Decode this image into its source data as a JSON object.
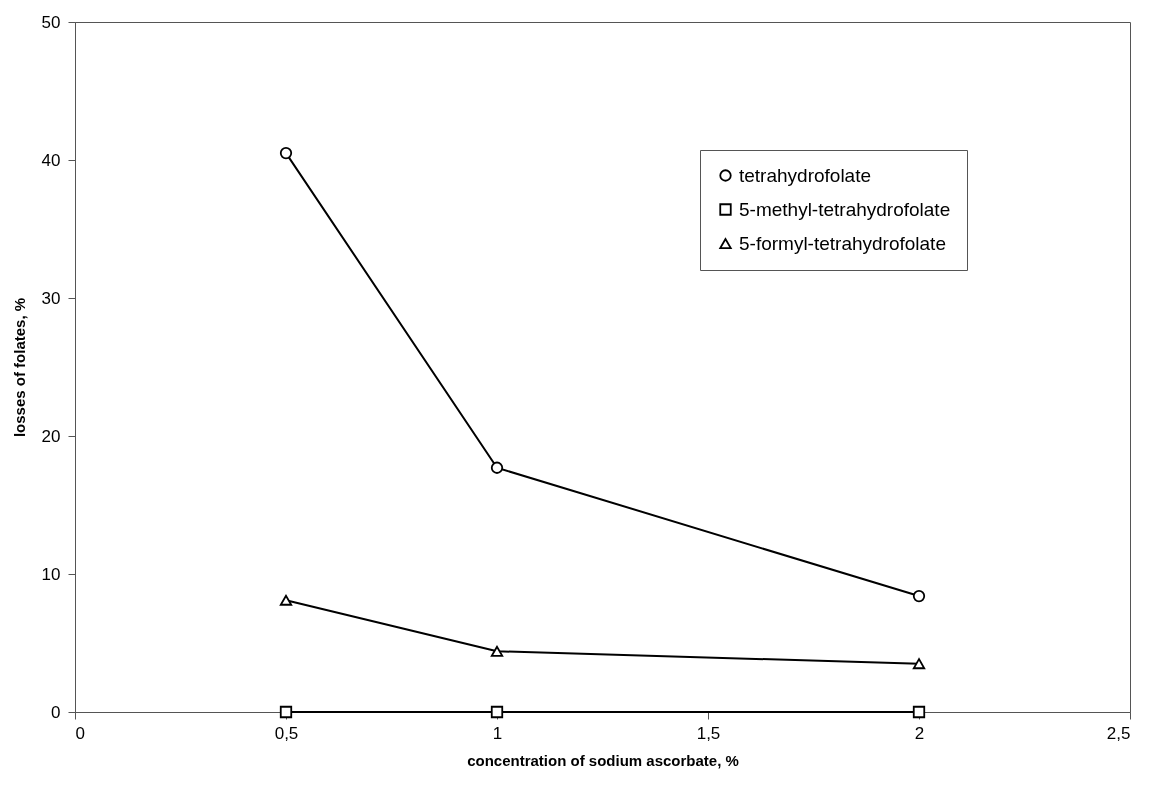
{
  "chart_data": {
    "type": "line",
    "xlabel": "concentration of sodium ascorbate, %",
    "ylabel": "losses of folates, %",
    "x": [
      0.5,
      1,
      2
    ],
    "series": [
      {
        "name": "tetrahydrofolate",
        "color": "#000000",
        "marker": "circle",
        "values": [
          40.5,
          17.7,
          8.4
        ]
      },
      {
        "name": "5-methyl-tetrahydrofolate",
        "color": "#000000",
        "marker": "square",
        "values": [
          0,
          0,
          0
        ]
      },
      {
        "name": "5-formyl-tetrahydrofolate",
        "color": "#000000",
        "marker": "triangle",
        "values": [
          8.1,
          4.4,
          3.5
        ]
      }
    ],
    "xlim": [
      0,
      2.5
    ],
    "xticks": [
      0,
      {
        "value": 0.5,
        "label": "0,5"
      },
      1,
      {
        "value": 1.5,
        "label": "1,5"
      },
      2,
      {
        "value": 2.5,
        "label": "2,5"
      }
    ],
    "ylim": [
      0,
      50
    ],
    "yticks": [
      0,
      10,
      20,
      30,
      40,
      50
    ],
    "grid": false,
    "legend": "top right",
    "line_style": "solid"
  }
}
